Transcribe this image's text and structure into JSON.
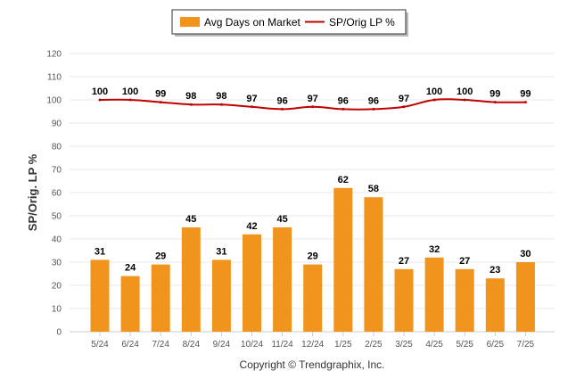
{
  "colors": {
    "bar": "#F0941D",
    "line": "#C00000",
    "grid": "#E8E8E8",
    "axis": "#CCCCCC"
  },
  "legend": {
    "bar_label": "Avg Days on Market",
    "line_label": "SP/Orig LP %"
  },
  "credit": "Copyright © Trendgraphix, Inc.",
  "chart_data": {
    "type": "bar",
    "categories": [
      "5/24",
      "6/24",
      "7/24",
      "8/24",
      "9/24",
      "10/24",
      "11/24",
      "12/24",
      "1/25",
      "2/25",
      "3/25",
      "4/25",
      "5/25",
      "6/25",
      "7/25"
    ],
    "series": [
      {
        "name": "Avg Days on Market",
        "type": "bar",
        "values": [
          31,
          24,
          29,
          45,
          31,
          42,
          45,
          29,
          62,
          58,
          27,
          32,
          27,
          23,
          30
        ]
      },
      {
        "name": "SP/Orig LP %",
        "type": "line",
        "values": [
          100,
          100,
          99,
          98,
          98,
          97,
          96,
          97,
          96,
          96,
          97,
          100,
          100,
          99,
          99
        ]
      }
    ],
    "ylabel": "SP/Orig. LP %",
    "ylim": [
      0,
      120
    ],
    "yticks": [
      0,
      10,
      20,
      30,
      40,
      50,
      60,
      70,
      80,
      90,
      100,
      110,
      120
    ],
    "grid": true,
    "legend_position": "top-center"
  }
}
